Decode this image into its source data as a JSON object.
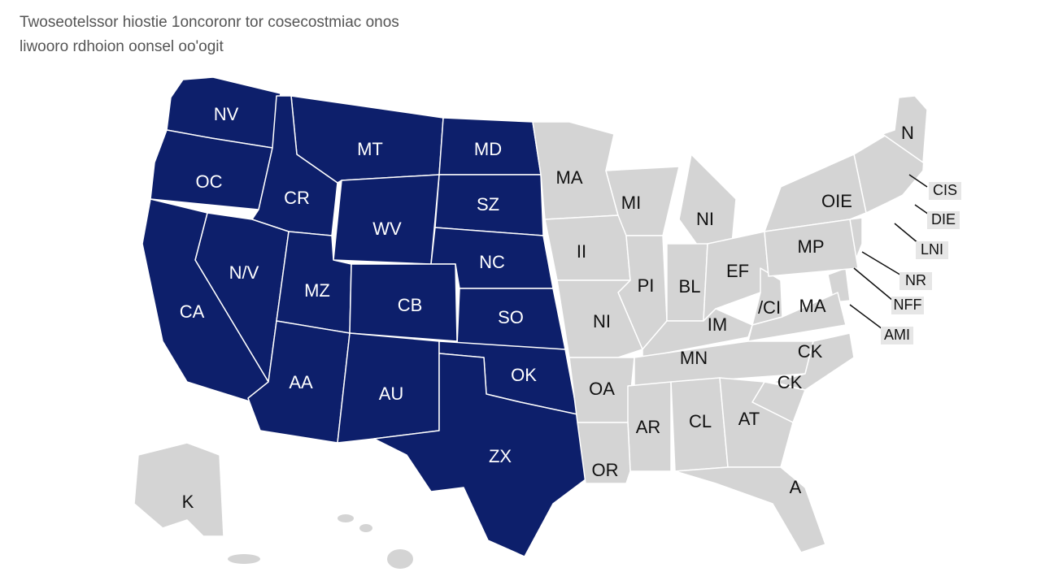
{
  "map_data": {
    "title": "Twoseotelssor hiostie 1oncoronr tor cosecostmiac onos",
    "subtitle": "liwooro rdhoion oonsel oo'ogit",
    "highlighted_color": "#0d1f6b",
    "base_color": "#d4d4d4",
    "highlighted_states": [
      "NV",
      "MT",
      "MD",
      "OC",
      "CR",
      "SZ",
      "WV",
      "NC",
      "N/V",
      "MZ",
      "CB",
      "SO",
      "CA",
      "AA",
      "AU",
      "OK",
      "ZX"
    ],
    "other_states": [
      "MA",
      "MI",
      "NI",
      "II",
      "PI",
      "BL",
      "EF",
      "NI",
      "IM",
      "/CI",
      "MA",
      "OA",
      "MN",
      "CK",
      "CK",
      "AR",
      "CL",
      "AT",
      "OR",
      "A",
      "OIE",
      "MP",
      "N",
      "K"
    ],
    "callouts": [
      "CIS",
      "DIE",
      "LNI",
      "NR",
      "NFF",
      "AMI"
    ]
  }
}
